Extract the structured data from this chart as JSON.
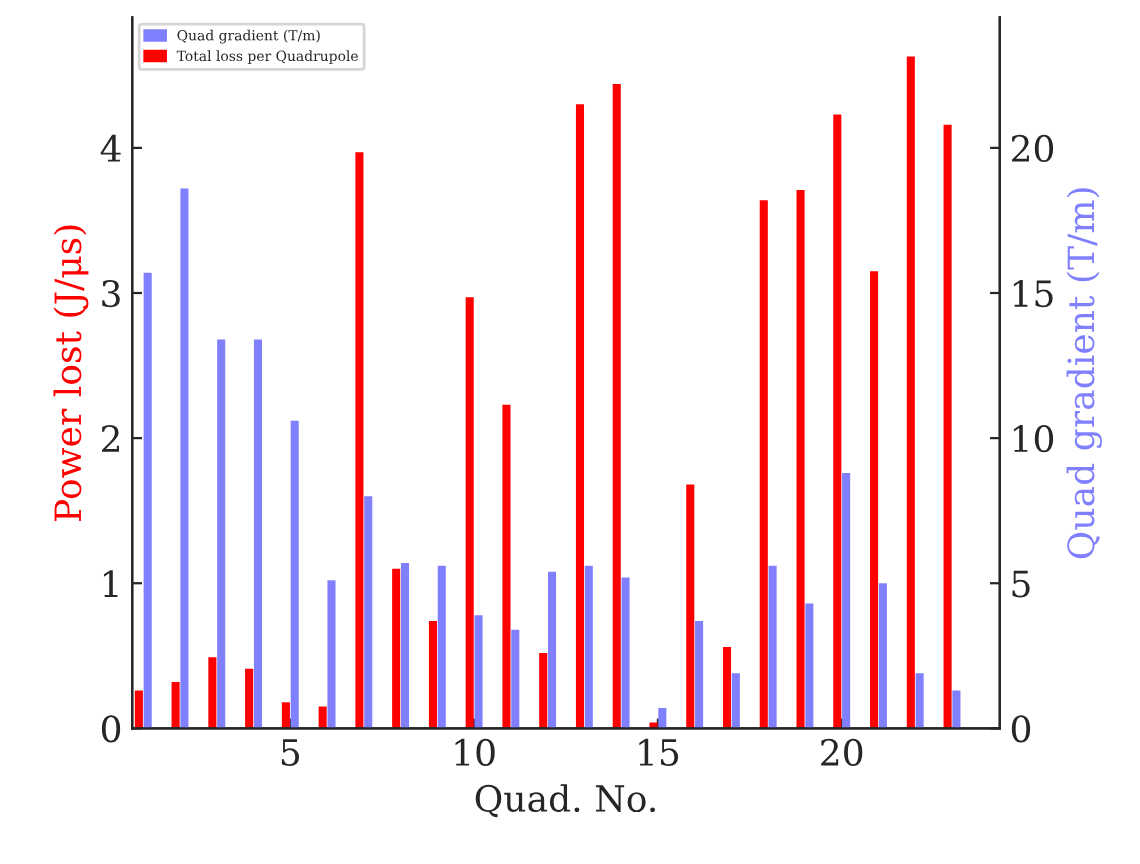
{
  "chart_data": {
    "type": "bar",
    "xlabel": "Quad. No.",
    "ylabel": "Power lost (J/μs)",
    "y2label": "Quad gradient (T/m)",
    "x": [
      1,
      2,
      3,
      4,
      5,
      6,
      7,
      8,
      9,
      10,
      11,
      12,
      13,
      14,
      15,
      16,
      17,
      18,
      19,
      20,
      21,
      22,
      23
    ],
    "xlim": [
      0.7,
      24.3
    ],
    "xticks": [
      5,
      10,
      15,
      20
    ],
    "ylim": [
      0,
      4.9
    ],
    "yticks": [
      0,
      1,
      2,
      3,
      4
    ],
    "y2lim": [
      0,
      24.5
    ],
    "y2ticks": [
      0,
      5,
      10,
      15,
      20
    ],
    "series": [
      {
        "name": "Quad gradient (T/m)",
        "color": "#8080ff",
        "axis": "y2",
        "values": [
          15.7,
          18.6,
          13.4,
          13.4,
          10.6,
          5.1,
          8.0,
          5.7,
          5.6,
          3.9,
          3.4,
          5.4,
          5.6,
          5.2,
          0.7,
          3.7,
          1.9,
          5.6,
          4.3,
          8.8,
          5.0,
          1.9,
          1.3
        ]
      },
      {
        "name": "Total loss per Quadrupole",
        "color": "#ff0000",
        "values": [
          0.26,
          0.32,
          0.49,
          0.41,
          0.18,
          0.15,
          3.97,
          1.1,
          0.74,
          2.97,
          2.23,
          0.52,
          4.3,
          4.44,
          0.04,
          1.68,
          0.56,
          3.64,
          3.71,
          4.23,
          3.15,
          4.63,
          4.16
        ]
      }
    ],
    "legend": "top left",
    "grid": false
  }
}
